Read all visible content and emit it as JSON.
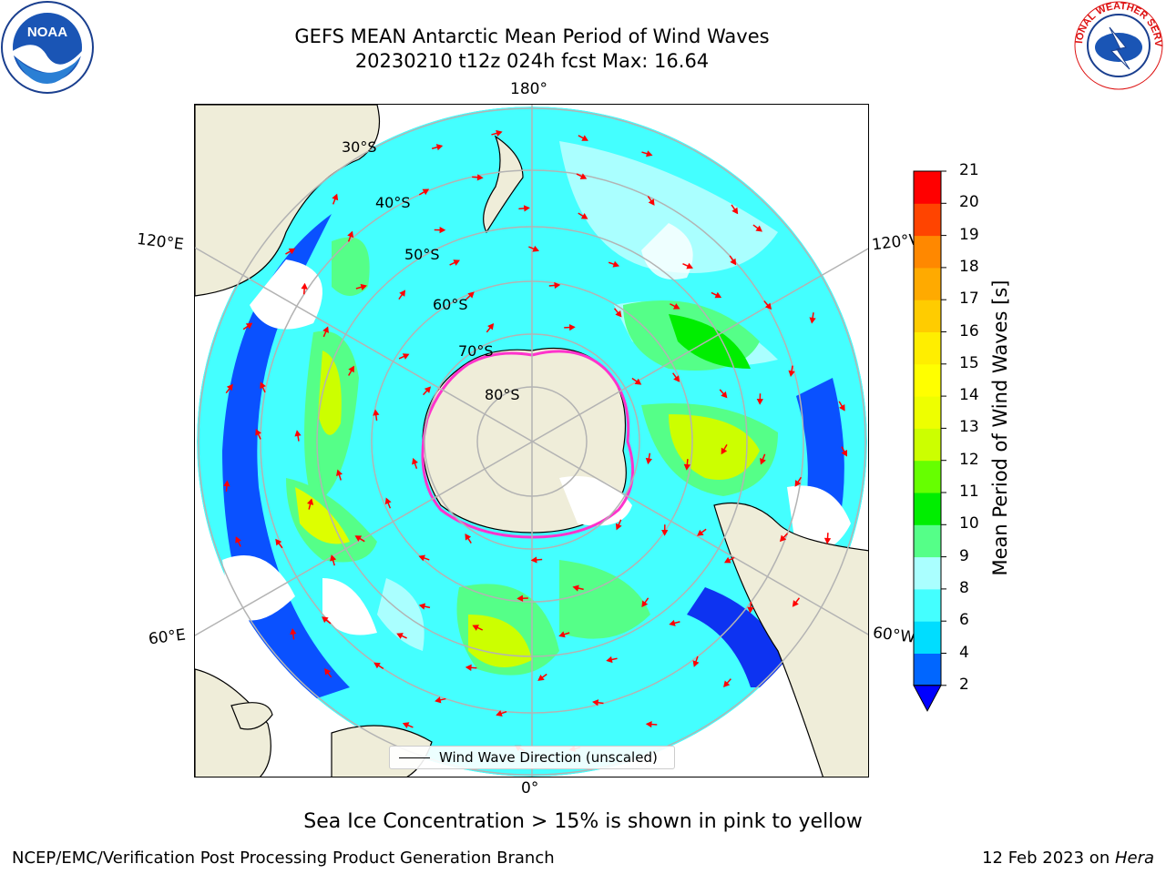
{
  "title": {
    "line1": "GEFS MEAN Antarctic Mean Period of Wind Waves",
    "line2": "20230210 t12z 024h fcst   Max: 16.64"
  },
  "logos": {
    "left": {
      "name": "noaa-logo",
      "text": "NOAA"
    },
    "right": {
      "name": "nws-logo",
      "text": "NATIONAL WEATHER SERVICE"
    }
  },
  "map": {
    "projection": "south-polar-stereographic",
    "longitude_labels": {
      "top": "180°",
      "bottom": "0°",
      "upper_left": "120°E",
      "upper_right": "120°W",
      "lower_left": "60°E",
      "lower_right": "60°W"
    },
    "latitude_labels": [
      "30°S",
      "40°S",
      "50°S",
      "60°S",
      "70°S",
      "80°S"
    ],
    "legend_label": "Wind Wave Direction (unscaled)",
    "land_color": "#efedd9",
    "arrow_color": "#ff0000",
    "sea_ice_color": "#ff33cc"
  },
  "colorbar": {
    "title": "Mean Period of Wind Waves [s]",
    "ticks": [
      "2",
      "4",
      "6",
      "8",
      "9",
      "10",
      "11",
      "12",
      "13",
      "14",
      "15",
      "16",
      "17",
      "18",
      "19",
      "20",
      "21"
    ],
    "levels": [
      2,
      4,
      6,
      8,
      9,
      10,
      11,
      12,
      13,
      14,
      15,
      16,
      17,
      18,
      19,
      20,
      21
    ],
    "colors": [
      "#0066ff",
      "#00ddff",
      "#44ffff",
      "#aaffff",
      "#55ff88",
      "#00ee00",
      "#66ff00",
      "#ccff00",
      "#eeff00",
      "#ffff00",
      "#ffee00",
      "#ffcc00",
      "#ffaa00",
      "#ff8800",
      "#ff4400",
      "#ff0000"
    ],
    "under_color": "#0000ff"
  },
  "caption": "Sea Ice Concentration > 15% is shown in pink to yellow",
  "footer": {
    "left": "NCEP/EMC/Verification Post Processing Product Generation Branch",
    "right_date": "12 Feb 2023 on ",
    "right_machine": "Hera"
  }
}
